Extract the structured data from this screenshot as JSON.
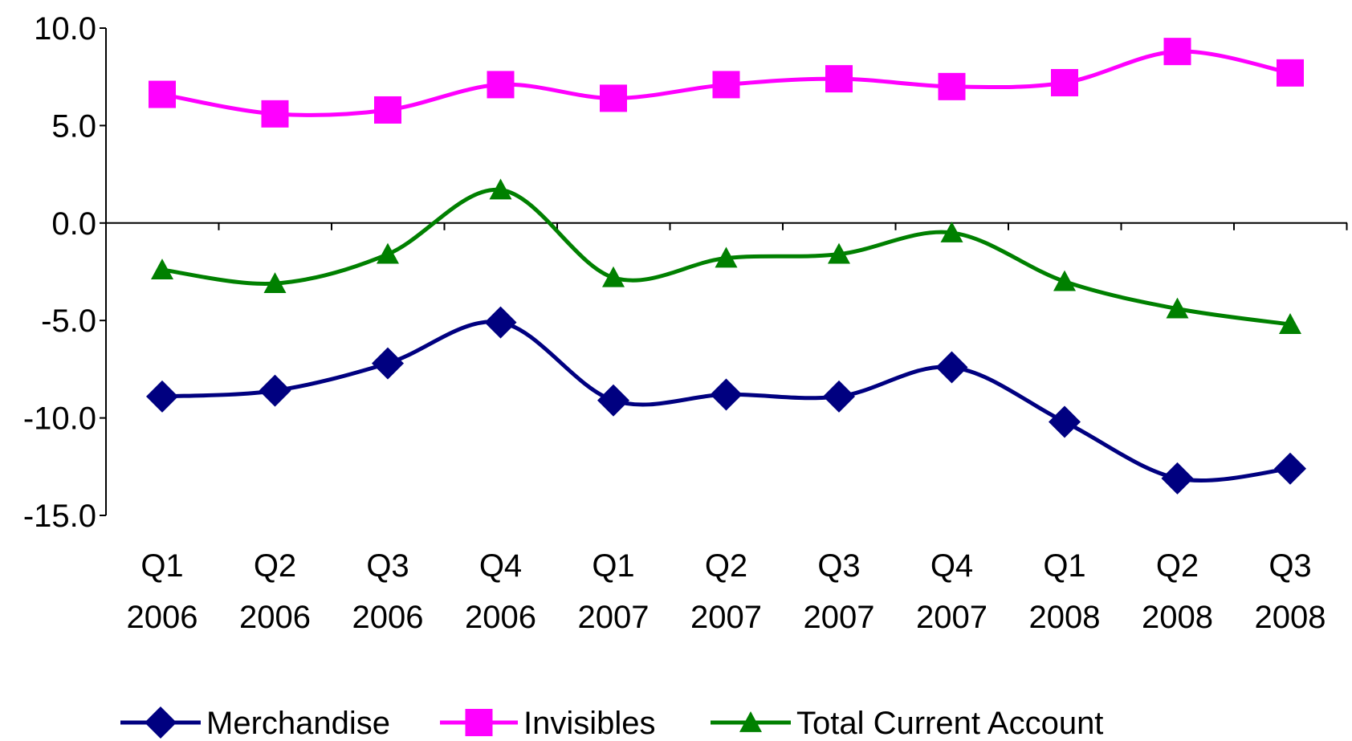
{
  "chart_data": {
    "type": "line",
    "title": "",
    "xlabel": "",
    "ylabel": "",
    "ylim": [
      -15,
      10
    ],
    "y_ticks": [
      10,
      5,
      0,
      -5,
      -10,
      -15
    ],
    "y_tick_labels": [
      "10.0",
      "5.0",
      "0.0",
      "-5.0",
      "-10.0",
      "-15.0"
    ],
    "categories": [
      [
        "Q1",
        "2006"
      ],
      [
        "Q2",
        "2006"
      ],
      [
        "Q3",
        "2006"
      ],
      [
        "Q4",
        "2006"
      ],
      [
        "Q1",
        "2007"
      ],
      [
        "Q2",
        "2007"
      ],
      [
        "Q3",
        "2007"
      ],
      [
        "Q4",
        "2007"
      ],
      [
        "Q1",
        "2008"
      ],
      [
        "Q2",
        "2008"
      ],
      [
        "Q3",
        "2008"
      ]
    ],
    "grid": false,
    "legend_position": "bottom",
    "series": [
      {
        "name": "Merchandise",
        "color": "#000080",
        "marker": "diamond",
        "values": [
          -8.9,
          -8.6,
          -7.2,
          -5.1,
          -9.1,
          -8.8,
          -8.9,
          -7.4,
          -10.2,
          -13.1,
          -12.6
        ]
      },
      {
        "name": "Invisibles",
        "color": "#FF00FF",
        "marker": "square",
        "values": [
          6.6,
          5.6,
          5.8,
          7.1,
          6.4,
          7.1,
          7.4,
          7.0,
          7.2,
          8.8,
          7.7
        ]
      },
      {
        "name": "Total Current Account",
        "color": "#008000",
        "marker": "triangle",
        "values": [
          -2.4,
          -3.1,
          -1.6,
          1.7,
          -2.8,
          -1.8,
          -1.6,
          -0.5,
          -3.0,
          -4.4,
          -5.2
        ]
      }
    ]
  }
}
